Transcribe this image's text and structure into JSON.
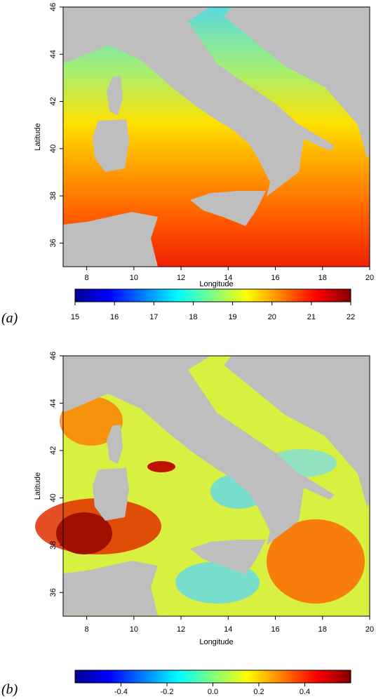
{
  "panels": [
    {
      "label": "(a)",
      "map": {
        "xlabel": "Longitude",
        "ylabel": "Latitude",
        "xlim": [
          7,
          20
        ],
        "ylim": [
          35,
          46
        ],
        "xticks": [
          8,
          10,
          12,
          14,
          16,
          18,
          20
        ],
        "yticks": [
          36,
          38,
          40,
          42,
          44,
          46
        ]
      },
      "colorbar": {
        "lim": [
          15,
          22
        ],
        "ticks": [
          15,
          16,
          17,
          18,
          19,
          20,
          21,
          22
        ]
      }
    },
    {
      "label": "(b)",
      "map": {
        "xlabel": "Longitude",
        "ylabel": "Latitude",
        "xlim": [
          7,
          20
        ],
        "ylim": [
          35,
          46
        ],
        "xticks": [
          8,
          10,
          12,
          14,
          16,
          18,
          20
        ],
        "yticks": [
          36,
          38,
          40,
          42,
          44,
          46
        ]
      },
      "colorbar": {
        "lim": [
          -0.6,
          0.6
        ],
        "ticks": [
          -0.4,
          -0.2,
          {
            "value": 0,
            "label": "0.0"
          },
          0.2,
          0.4
        ]
      }
    }
  ]
}
